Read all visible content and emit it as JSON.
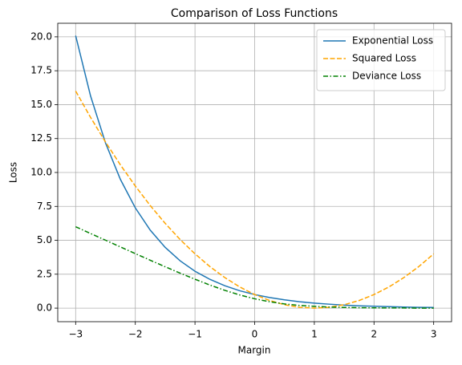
{
  "chart_data": {
    "type": "line",
    "title": "Comparison of Loss Functions",
    "x_label": "Margin",
    "y_label": "Loss",
    "x": [
      -3,
      -2.75,
      -2.5,
      -2.25,
      -2,
      -1.75,
      -1.5,
      -1.25,
      -1,
      -0.75,
      -0.5,
      -0.25,
      0,
      0.25,
      0.5,
      0.75,
      1,
      1.25,
      1.5,
      1.75,
      2,
      2.25,
      2.5,
      2.75,
      3
    ],
    "series": [
      {
        "name": "Exponential Loss",
        "color": "#1f77b4",
        "linestyle": "solid",
        "values": [
          20.09,
          15.64,
          12.18,
          9.49,
          7.39,
          5.75,
          4.48,
          3.49,
          2.72,
          2.12,
          1.65,
          1.28,
          1,
          0.78,
          0.61,
          0.47,
          0.37,
          0.29,
          0.22,
          0.17,
          0.14,
          0.11,
          0.08,
          0.06,
          0.05
        ]
      },
      {
        "name": "Squared Loss",
        "color": "#ffa500",
        "linestyle": "dashed",
        "values": [
          16,
          14.06,
          12.25,
          10.56,
          9,
          7.56,
          6.25,
          5.06,
          4,
          3.06,
          2.25,
          1.56,
          1,
          0.56,
          0.25,
          0.06,
          0,
          0.06,
          0.25,
          0.56,
          1,
          1.56,
          2.25,
          3.06,
          4
        ]
      },
      {
        "name": "Deviance Loss",
        "color": "#008000",
        "linestyle": "dashdot",
        "values": [
          6.0,
          5.5,
          5.01,
          4.51,
          4.02,
          3.53,
          3.05,
          2.58,
          2.13,
          1.7,
          1.31,
          0.97,
          0.69,
          0.47,
          0.31,
          0.2,
          0.13,
          0.08,
          0.05,
          0.03,
          0.02,
          0.01,
          0.01,
          0.0,
          0.0
        ]
      }
    ],
    "xlim": [
      -3.3,
      3.3
    ],
    "ylim": [
      -1,
      21
    ],
    "xticks": [
      {
        "value": -3,
        "label": "−3"
      },
      {
        "value": -2,
        "label": "−2"
      },
      {
        "value": -1,
        "label": "−1"
      },
      0,
      1,
      2,
      3
    ],
    "yticks": [
      {
        "value": 0,
        "label": "0.0"
      },
      2.5,
      {
        "value": 5,
        "label": "5.0"
      },
      7.5,
      {
        "value": 10,
        "label": "10.0"
      },
      12.5,
      {
        "value": 15,
        "label": "15.0"
      },
      17.5,
      {
        "value": 20,
        "label": "20.0"
      }
    ],
    "grid": true,
    "legend": "upper right"
  }
}
